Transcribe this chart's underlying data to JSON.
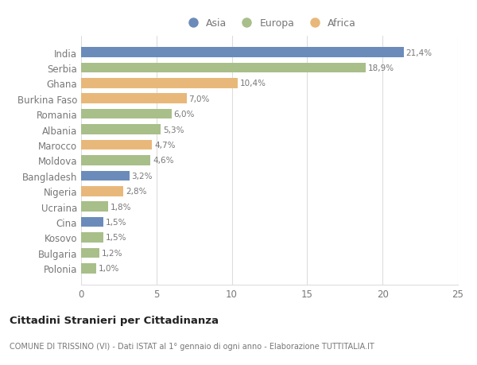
{
  "countries": [
    "India",
    "Serbia",
    "Ghana",
    "Burkina Faso",
    "Romania",
    "Albania",
    "Marocco",
    "Moldova",
    "Bangladesh",
    "Nigeria",
    "Ucraina",
    "Cina",
    "Kosovo",
    "Bulgaria",
    "Polonia"
  ],
  "values": [
    21.4,
    18.9,
    10.4,
    7.0,
    6.0,
    5.3,
    4.7,
    4.6,
    3.2,
    2.8,
    1.8,
    1.5,
    1.5,
    1.2,
    1.0
  ],
  "labels": [
    "21,4%",
    "18,9%",
    "10,4%",
    "7,0%",
    "6,0%",
    "5,3%",
    "4,7%",
    "4,6%",
    "3,2%",
    "2,8%",
    "1,8%",
    "1,5%",
    "1,5%",
    "1,2%",
    "1,0%"
  ],
  "categories": [
    "Asia",
    "Europa",
    "Africa"
  ],
  "continents": [
    "Asia",
    "Europa",
    "Africa",
    "Africa",
    "Europa",
    "Europa",
    "Africa",
    "Europa",
    "Asia",
    "Africa",
    "Europa",
    "Asia",
    "Europa",
    "Europa",
    "Europa"
  ],
  "colors": {
    "Asia": "#6b8cba",
    "Europa": "#a8bf8a",
    "Africa": "#e8b87a"
  },
  "title": "Cittadini Stranieri per Cittadinanza",
  "subtitle": "COMUNE DI TRISSINO (VI) - Dati ISTAT al 1° gennaio di ogni anno - Elaborazione TUTTITALIA.IT",
  "xlim": [
    0,
    25
  ],
  "xticks": [
    0,
    5,
    10,
    15,
    20,
    25
  ],
  "background_color": "#ffffff",
  "bar_height": 0.65,
  "grid_color": "#dddddd",
  "text_color": "#777777",
  "title_color": "#222222"
}
